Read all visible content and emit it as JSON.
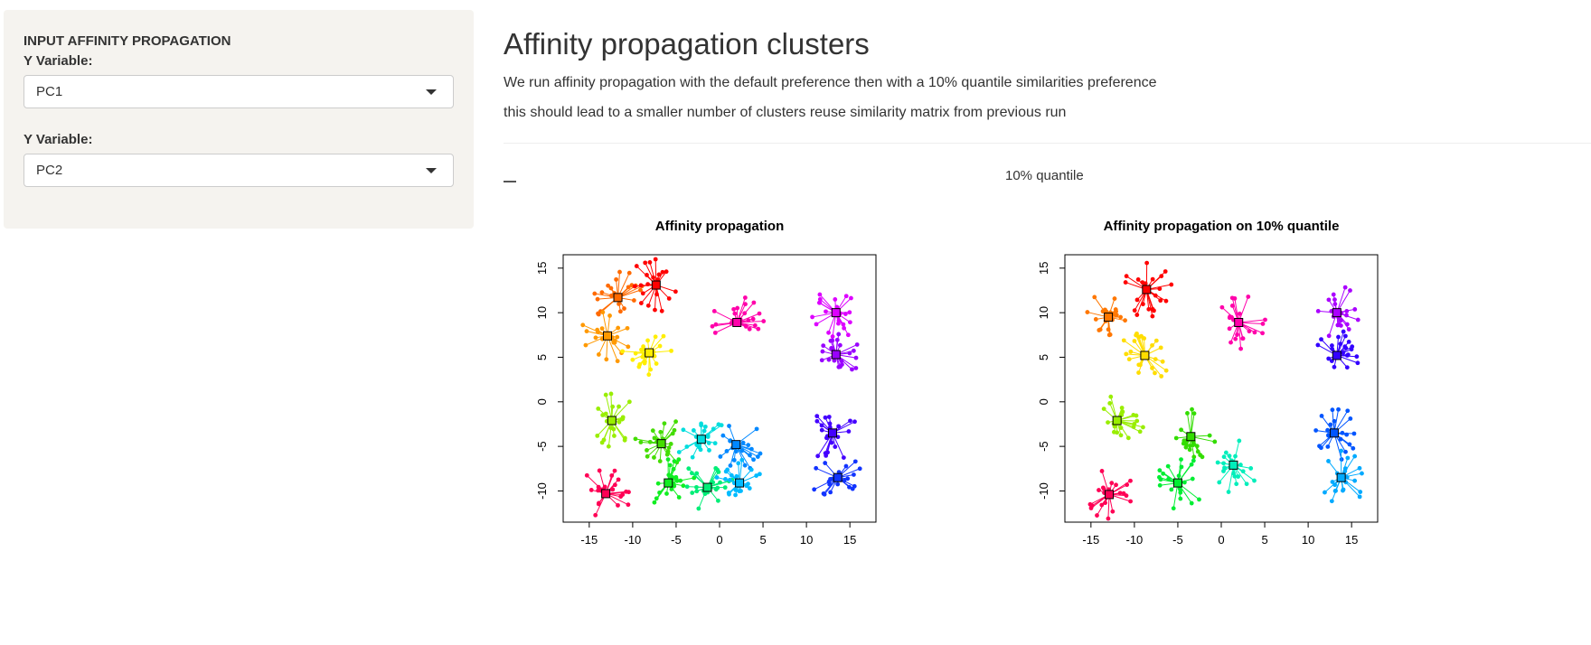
{
  "sidebar": {
    "heading": "INPUT AFFINITY PROPAGATION",
    "y_label": "Y Variable:",
    "y_value": "PC1",
    "x_label": "Y Variable:",
    "x_value": "PC2"
  },
  "main": {
    "title": "Affinity propagation clusters",
    "desc1": "We run affinity propagation with the default preference then with a 10% quantile similarities preference",
    "desc2": "this should lead to a smaller number of clusters reuse similarity matrix from previous run",
    "tab_label": "10% quantile"
  },
  "chart_data": [
    {
      "type": "scatter",
      "title": "Affinity propagation",
      "xlim": [
        -18,
        18
      ],
      "ylim": [
        -13.5,
        16.5
      ],
      "x_ticks": [
        -15,
        -10,
        -5,
        0,
        5,
        10,
        15
      ],
      "y_ticks": [
        -10,
        -5,
        0,
        5,
        10,
        15
      ],
      "clusters": [
        {
          "exemplar": [
            -11.7,
            11.7
          ],
          "color": "#ff6a00"
        },
        {
          "exemplar": [
            -7.3,
            13.1
          ],
          "color": "#ff0000"
        },
        {
          "exemplar": [
            -12.9,
            7.4
          ],
          "color": "#ff9900"
        },
        {
          "exemplar": [
            -8.1,
            5.5
          ],
          "color": "#ffee00"
        },
        {
          "exemplar": [
            2.0,
            8.9
          ],
          "color": "#ff00aa"
        },
        {
          "exemplar": [
            13.4,
            10.0
          ],
          "color": "#dd00ff"
        },
        {
          "exemplar": [
            13.4,
            5.3
          ],
          "color": "#9900ff"
        },
        {
          "exemplar": [
            -12.4,
            -2.1
          ],
          "color": "#99ee00"
        },
        {
          "exemplar": [
            -6.7,
            -4.7
          ],
          "color": "#44dd00"
        },
        {
          "exemplar": [
            -2.1,
            -4.2
          ],
          "color": "#00dddd"
        },
        {
          "exemplar": [
            1.9,
            -4.8
          ],
          "color": "#0088ff"
        },
        {
          "exemplar": [
            13.0,
            -3.5
          ],
          "color": "#4400ff"
        },
        {
          "exemplar": [
            13.6,
            -8.5
          ],
          "color": "#1133ff"
        },
        {
          "exemplar": [
            -13.1,
            -10.3
          ],
          "color": "#ff0055"
        },
        {
          "exemplar": [
            -5.9,
            -9.1
          ],
          "color": "#11ee22"
        },
        {
          "exemplar": [
            -1.4,
            -9.6
          ],
          "color": "#00ee77"
        },
        {
          "exemplar": [
            2.3,
            -9.1
          ],
          "color": "#00bbff"
        }
      ]
    },
    {
      "type": "scatter",
      "title": "Affinity propagation on 10% quantile",
      "xlim": [
        -18,
        18
      ],
      "ylim": [
        -13.5,
        16.5
      ],
      "x_ticks": [
        -15,
        -10,
        -5,
        0,
        5,
        10,
        15
      ],
      "y_ticks": [
        -10,
        -5,
        0,
        5,
        10,
        15
      ],
      "clusters": [
        {
          "exemplar": [
            -8.6,
            12.6
          ],
          "color": "#ff0000"
        },
        {
          "exemplar": [
            -13.0,
            9.5
          ],
          "color": "#ff7700"
        },
        {
          "exemplar": [
            -8.8,
            5.2
          ],
          "color": "#ffdd00"
        },
        {
          "exemplar": [
            2.0,
            8.9
          ],
          "color": "#ff00aa"
        },
        {
          "exemplar": [
            13.3,
            10.0
          ],
          "color": "#aa00ff"
        },
        {
          "exemplar": [
            13.3,
            5.2
          ],
          "color": "#3300ff"
        },
        {
          "exemplar": [
            -12.0,
            -2.1
          ],
          "color": "#99ee00"
        },
        {
          "exemplar": [
            -3.5,
            -3.9
          ],
          "color": "#33dd00"
        },
        {
          "exemplar": [
            -5.0,
            -9.1
          ],
          "color": "#00ee33"
        },
        {
          "exemplar": [
            1.4,
            -7.1
          ],
          "color": "#00eebb"
        },
        {
          "exemplar": [
            13.0,
            -3.5
          ],
          "color": "#0055ff"
        },
        {
          "exemplar": [
            13.8,
            -8.5
          ],
          "color": "#00aaff"
        },
        {
          "exemplar": [
            -12.9,
            -10.4
          ],
          "color": "#ff0055"
        }
      ]
    }
  ]
}
